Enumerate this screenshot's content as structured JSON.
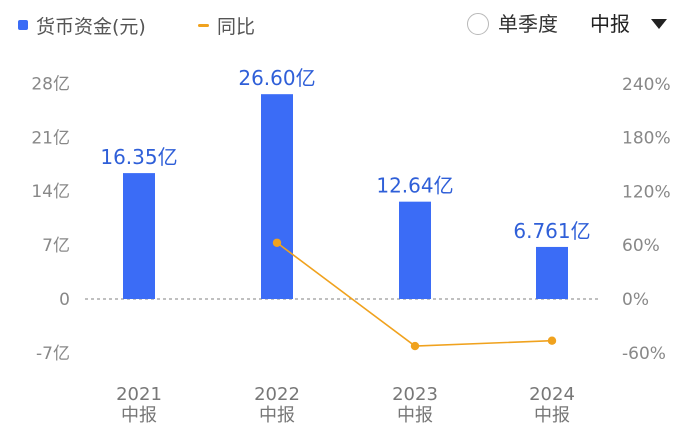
{
  "legend": {
    "bar_label": "货币资金(元)",
    "line_label": "同比"
  },
  "controls": {
    "quarter_label": "单季度",
    "period_value": "中报"
  },
  "colors": {
    "bar": "#3b6cf6",
    "line": "#f0a21e",
    "data_label": "#2f5fd8"
  },
  "chart_data": {
    "type": "bar",
    "categories": [
      "2021\n中报",
      "2022\n中报",
      "2023\n中报",
      "2024\n中报"
    ],
    "series": [
      {
        "name": "货币资金(元)",
        "type": "bar",
        "axis": "left",
        "values": [
          16.35,
          26.6,
          12.64,
          6.761
        ],
        "labels": [
          "16.35亿",
          "26.60亿",
          "12.64亿",
          "6.761亿"
        ]
      },
      {
        "name": "同比",
        "type": "line",
        "axis": "right",
        "values": [
          null,
          62.7,
          -52.5,
          -46.5
        ]
      }
    ],
    "y_left": {
      "ticks": [
        28,
        21,
        14,
        7,
        0,
        -7
      ],
      "tick_labels": [
        "28亿",
        "21亿",
        "14亿",
        "7亿",
        "0",
        "-7亿"
      ],
      "range": [
        -7,
        28
      ]
    },
    "y_right": {
      "ticks": [
        240,
        180,
        120,
        60,
        0,
        -60
      ],
      "tick_labels": [
        "240%",
        "180%",
        "120%",
        "60%",
        "0%",
        "-60%"
      ],
      "range": [
        -60,
        240
      ]
    },
    "grid": "zero-line-dashed",
    "legend_position": "top-left"
  }
}
